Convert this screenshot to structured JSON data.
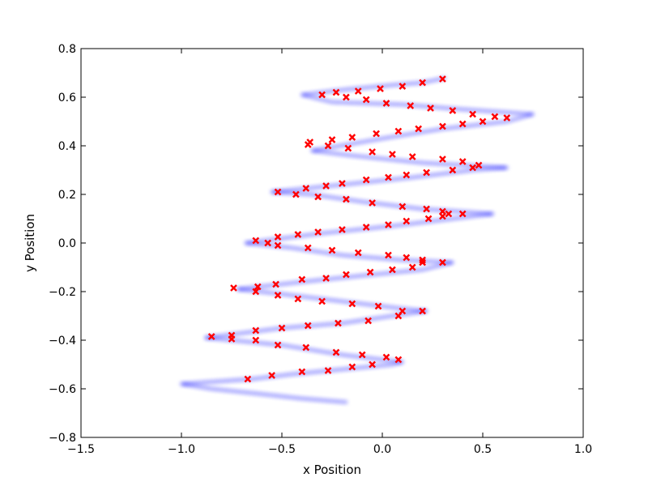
{
  "chart_data": {
    "type": "scatter",
    "title": "",
    "xlabel": "x Position",
    "ylabel": "y Position",
    "xlim": [
      -1.5,
      1.0
    ],
    "ylim": [
      -0.8,
      0.8
    ],
    "xticks": [
      -1.5,
      -1.0,
      -0.5,
      0.0,
      0.5,
      1.0
    ],
    "xtick_labels": [
      "−1.5",
      "−1.0",
      "−0.5",
      "0.0",
      "0.5",
      "1.0"
    ],
    "yticks": [
      -0.8,
      -0.6,
      -0.4,
      -0.2,
      0.0,
      0.2,
      0.4,
      0.6,
      0.8
    ],
    "ytick_labels": [
      "−0.8",
      "−0.6",
      "−0.4",
      "−0.2",
      "0.0",
      "0.2",
      "0.4",
      "0.6",
      "0.8"
    ],
    "grid": false,
    "colors": {
      "trajectory": "#0000ff",
      "observations": "#ff0000"
    },
    "series": [
      {
        "marker": "blurred-dot",
        "x": [
          -0.18,
          -0.4,
          -0.62,
          -0.85,
          -1.0,
          -0.65,
          -0.45,
          -0.2,
          0.05,
          0.1,
          -0.2,
          -0.5,
          -0.75,
          -0.88,
          -0.5,
          -0.2,
          0.05,
          0.22,
          0.1,
          -0.2,
          -0.5,
          -0.72,
          -0.4,
          -0.05,
          0.2,
          0.35,
          0.1,
          -0.2,
          -0.45,
          -0.68,
          -0.3,
          0.05,
          0.35,
          0.55,
          0.2,
          -0.1,
          -0.35,
          -0.55,
          -0.2,
          0.15,
          0.45,
          0.62,
          0.2,
          -0.15,
          -0.35,
          0.0,
          0.3,
          0.62,
          0.75,
          0.4,
          0.1,
          -0.25,
          -0.4,
          -0.2,
          0.05,
          0.2,
          0.32
        ],
        "y": [
          -0.655,
          -0.64,
          -0.62,
          -0.6,
          -0.58,
          -0.56,
          -0.54,
          -0.52,
          -0.5,
          -0.49,
          -0.46,
          -0.42,
          -0.4,
          -0.39,
          -0.35,
          -0.33,
          -0.3,
          -0.28,
          -0.27,
          -0.24,
          -0.21,
          -0.19,
          -0.16,
          -0.13,
          -0.11,
          -0.08,
          -0.07,
          -0.05,
          -0.02,
          0.0,
          0.04,
          0.07,
          0.1,
          0.12,
          0.14,
          0.17,
          0.2,
          0.21,
          0.24,
          0.27,
          0.3,
          0.31,
          0.33,
          0.36,
          0.38,
          0.43,
          0.47,
          0.5,
          0.53,
          0.55,
          0.57,
          0.58,
          0.61,
          0.63,
          0.65,
          0.66,
          0.68
        ]
      },
      {
        "marker": "x",
        "x": [
          -0.67,
          -0.55,
          -0.4,
          -0.27,
          -0.15,
          -0.05,
          0.08,
          0.02,
          -0.1,
          -0.23,
          -0.38,
          -0.52,
          -0.63,
          -0.75,
          -0.85,
          -0.75,
          -0.63,
          -0.5,
          -0.37,
          -0.22,
          -0.07,
          0.08,
          0.2,
          0.1,
          -0.02,
          -0.15,
          -0.3,
          -0.42,
          -0.52,
          -0.63,
          -0.62,
          -0.74,
          -0.53,
          -0.4,
          -0.28,
          -0.18,
          -0.06,
          0.05,
          0.15,
          0.2,
          0.3,
          0.2,
          0.12,
          0.03,
          -0.12,
          -0.25,
          -0.37,
          -0.52,
          -0.57,
          -0.63,
          -0.52,
          -0.42,
          -0.32,
          -0.2,
          -0.08,
          0.03,
          0.12,
          0.23,
          0.3,
          0.33,
          0.4,
          0.3,
          0.22,
          0.1,
          -0.05,
          -0.18,
          -0.32,
          -0.43,
          -0.52,
          -0.38,
          -0.28,
          -0.2,
          -0.08,
          0.03,
          0.12,
          0.22,
          0.35,
          0.45,
          0.48,
          0.4,
          0.3,
          0.15,
          0.05,
          -0.05,
          -0.17,
          -0.27,
          -0.37,
          -0.36,
          -0.25,
          -0.15,
          -0.03,
          0.08,
          0.18,
          0.3,
          0.4,
          0.5,
          0.56,
          0.62,
          0.45,
          0.35,
          0.24,
          0.14,
          0.02,
          -0.08,
          -0.18,
          -0.3,
          -0.23,
          -0.12,
          -0.01,
          0.1,
          0.2,
          0.3
        ],
        "y": [
          -0.56,
          -0.545,
          -0.53,
          -0.525,
          -0.51,
          -0.5,
          -0.48,
          -0.47,
          -0.46,
          -0.45,
          -0.43,
          -0.42,
          -0.4,
          -0.395,
          -0.385,
          -0.38,
          -0.36,
          -0.35,
          -0.34,
          -0.33,
          -0.32,
          -0.3,
          -0.28,
          -0.28,
          -0.26,
          -0.25,
          -0.24,
          -0.23,
          -0.215,
          -0.2,
          -0.18,
          -0.185,
          -0.17,
          -0.15,
          -0.145,
          -0.13,
          -0.12,
          -0.11,
          -0.1,
          -0.08,
          -0.08,
          -0.07,
          -0.06,
          -0.05,
          -0.04,
          -0.03,
          -0.02,
          -0.01,
          0.0,
          0.01,
          0.025,
          0.035,
          0.045,
          0.055,
          0.065,
          0.075,
          0.09,
          0.1,
          0.11,
          0.12,
          0.12,
          0.13,
          0.14,
          0.15,
          0.165,
          0.18,
          0.19,
          0.2,
          0.21,
          0.225,
          0.235,
          0.245,
          0.26,
          0.27,
          0.28,
          0.29,
          0.3,
          0.31,
          0.32,
          0.335,
          0.345,
          0.355,
          0.365,
          0.375,
          0.39,
          0.4,
          0.405,
          0.415,
          0.425,
          0.435,
          0.45,
          0.46,
          0.47,
          0.48,
          0.49,
          0.5,
          0.52,
          0.515,
          0.53,
          0.545,
          0.555,
          0.565,
          0.575,
          0.59,
          0.6,
          0.61,
          0.62,
          0.625,
          0.635,
          0.645,
          0.66,
          0.675
        ]
      }
    ]
  }
}
